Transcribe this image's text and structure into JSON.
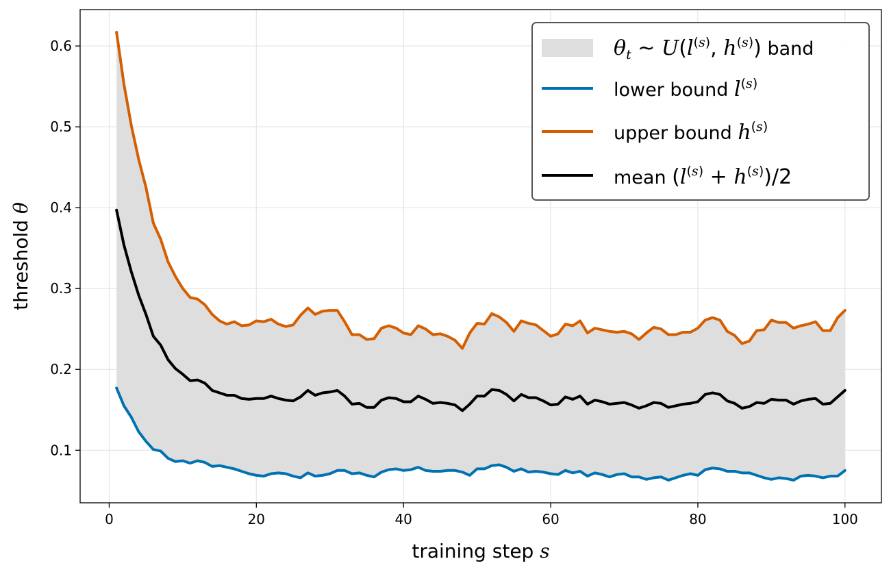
{
  "chart_data": {
    "type": "line",
    "xlabel": "training step",
    "xlabel_var": "s",
    "ylabel": "threshold",
    "ylabel_var": "θ",
    "xlim": [
      -3.95,
      104.95
    ],
    "ylim": [
      0.035,
      0.645
    ],
    "xticks": [
      0,
      20,
      40,
      60,
      80,
      100
    ],
    "yticks": [
      0.1,
      0.2,
      0.3,
      0.4,
      0.5,
      0.6
    ],
    "grid": true,
    "legend_position": "top-right",
    "legend": {
      "band": {
        "text": "θt ~ U(l(s), h(s)) band"
      },
      "lower": {
        "text_plain": "lower bound",
        "text_math": "l(s)"
      },
      "upper": {
        "text_plain": "upper bound",
        "text_math": "h(s)"
      },
      "mean": {
        "text_plain": "mean",
        "text_math": "(l(s) + h(s))/2"
      }
    },
    "x_start": 1,
    "x_step": 1,
    "series": [
      {
        "name": "upper bound h(s)",
        "key": "upper",
        "color": "#D55E00",
        "values": [
          0.617,
          0.553,
          0.502,
          0.46,
          0.425,
          0.381,
          0.361,
          0.333,
          0.315,
          0.3,
          0.289,
          0.287,
          0.28,
          0.268,
          0.26,
          0.256,
          0.259,
          0.254,
          0.255,
          0.26,
          0.259,
          0.262,
          0.256,
          0.253,
          0.255,
          0.267,
          0.276,
          0.268,
          0.272,
          0.273,
          0.273,
          0.259,
          0.243,
          0.243,
          0.237,
          0.238,
          0.251,
          0.254,
          0.251,
          0.245,
          0.243,
          0.254,
          0.25,
          0.243,
          0.244,
          0.241,
          0.236,
          0.226,
          0.245,
          0.257,
          0.256,
          0.269,
          0.265,
          0.258,
          0.247,
          0.26,
          0.257,
          0.255,
          0.248,
          0.241,
          0.244,
          0.256,
          0.254,
          0.26,
          0.245,
          0.251,
          0.249,
          0.247,
          0.246,
          0.247,
          0.244,
          0.237,
          0.245,
          0.252,
          0.25,
          0.243,
          0.243,
          0.246,
          0.246,
          0.251,
          0.261,
          0.264,
          0.261,
          0.247,
          0.242,
          0.232,
          0.235,
          0.248,
          0.249,
          0.261,
          0.258,
          0.258,
          0.251,
          0.254,
          0.256,
          0.259,
          0.248,
          0.248,
          0.264,
          0.273
        ]
      },
      {
        "name": "lower bound l(s)",
        "key": "lower",
        "color": "#0072B2",
        "values": [
          0.177,
          0.155,
          0.141,
          0.123,
          0.111,
          0.101,
          0.099,
          0.09,
          0.086,
          0.087,
          0.084,
          0.087,
          0.085,
          0.08,
          0.081,
          0.079,
          0.077,
          0.074,
          0.071,
          0.069,
          0.068,
          0.071,
          0.072,
          0.071,
          0.068,
          0.066,
          0.072,
          0.068,
          0.069,
          0.071,
          0.075,
          0.075,
          0.071,
          0.072,
          0.069,
          0.067,
          0.073,
          0.076,
          0.077,
          0.075,
          0.076,
          0.079,
          0.075,
          0.074,
          0.074,
          0.075,
          0.075,
          0.073,
          0.069,
          0.077,
          0.077,
          0.081,
          0.082,
          0.079,
          0.074,
          0.077,
          0.073,
          0.074,
          0.073,
          0.071,
          0.07,
          0.075,
          0.072,
          0.074,
          0.068,
          0.072,
          0.07,
          0.067,
          0.07,
          0.071,
          0.067,
          0.067,
          0.064,
          0.066,
          0.067,
          0.063,
          0.066,
          0.069,
          0.071,
          0.069,
          0.076,
          0.078,
          0.077,
          0.074,
          0.074,
          0.072,
          0.072,
          0.069,
          0.066,
          0.064,
          0.066,
          0.065,
          0.063,
          0.068,
          0.069,
          0.068,
          0.066,
          0.068,
          0.068,
          0.075
        ]
      },
      {
        "name": "mean (l(s) + h(s))/2",
        "key": "mean",
        "color": "#000000",
        "values": [
          0.397,
          0.354,
          0.321,
          0.292,
          0.268,
          0.241,
          0.23,
          0.212,
          0.201,
          0.194,
          0.186,
          0.187,
          0.183,
          0.174,
          0.171,
          0.168,
          0.168,
          0.164,
          0.163,
          0.164,
          0.164,
          0.167,
          0.164,
          0.162,
          0.161,
          0.166,
          0.174,
          0.168,
          0.171,
          0.172,
          0.174,
          0.167,
          0.157,
          0.158,
          0.153,
          0.153,
          0.162,
          0.165,
          0.164,
          0.16,
          0.16,
          0.167,
          0.163,
          0.158,
          0.159,
          0.158,
          0.156,
          0.149,
          0.157,
          0.167,
          0.167,
          0.175,
          0.174,
          0.169,
          0.161,
          0.169,
          0.165,
          0.165,
          0.161,
          0.156,
          0.157,
          0.166,
          0.163,
          0.167,
          0.157,
          0.162,
          0.16,
          0.157,
          0.158,
          0.159,
          0.156,
          0.152,
          0.155,
          0.159,
          0.158,
          0.153,
          0.155,
          0.157,
          0.158,
          0.16,
          0.169,
          0.171,
          0.169,
          0.161,
          0.158,
          0.152,
          0.154,
          0.159,
          0.158,
          0.163,
          0.162,
          0.162,
          0.157,
          0.161,
          0.163,
          0.164,
          0.157,
          0.158,
          0.166,
          0.174
        ]
      }
    ],
    "band": {
      "color": "#DEDEDE",
      "lower_key": "lower",
      "upper_key": "upper"
    }
  }
}
